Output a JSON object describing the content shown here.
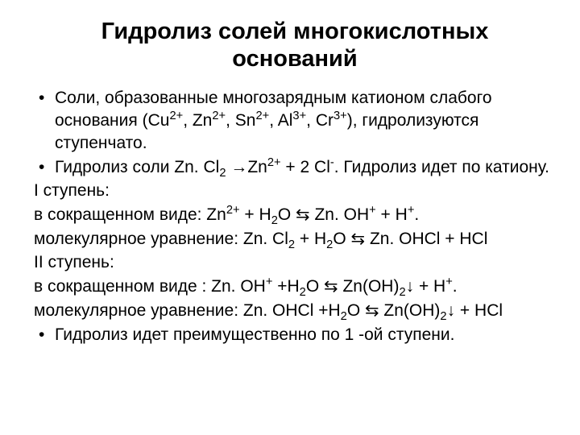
{
  "title": "Гидролиз солей многокислотных оснований",
  "b1": "Соли, образованные многозарядным катионом слабого основания (Cu",
  "b1b": ", Zn",
  "b1c": ", Sn",
  "b1d": ", Al",
  "b1e": ", Cr",
  "b1f": "), гидролизуются ступенчато",
  "b1g": ".",
  "b2a": "Гидролиз соли Zn. Cl",
  "b2b": " →Zn",
  "b2c": " + 2 Cl",
  "b2d": ". Гидролиз идет по катиону.",
  "l1": "I ступень:",
  "l2a": "в сокращенном виде:  Zn",
  "l2b": " + H",
  "l2c": "O ⇆ Zn. OH",
  "l2d": " + H",
  "l2e": ".",
  "l3a": "молекулярное уравнение: Zn. Cl",
  "l3b": " + H",
  "l3c": "O ⇆ Zn. OHCl + HCl",
  "l4": "II ступень:",
  "l5a": "в сокращенном виде : Zn. OH",
  "l5b": " +H",
  "l5c": "O ⇆ Zn(OH)",
  "l5d": "↓ + H",
  "l5e": ".",
  "l6a": "молекулярное уравнение: Zn. OHCl +H",
  "l6b": "O ⇆ Zn(OH)",
  "l6c": "↓ + HCl",
  "b3": "Гидролиз идет преимущественно по 1 -ой ступени.",
  "dot": "•",
  "s2p": "2+",
  "s3p": "3+",
  "sm": "-",
  "sp": "+",
  "s2": "2"
}
